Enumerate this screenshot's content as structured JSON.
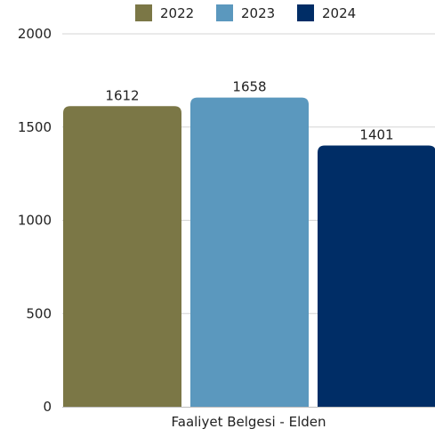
{
  "chart_data": {
    "type": "bar",
    "categories": [
      "Faaliyet Belgesi - Elden"
    ],
    "series": [
      {
        "name": "2022",
        "values": [
          1612
        ],
        "color": "#7b7746"
      },
      {
        "name": "2023",
        "values": [
          1658
        ],
        "color": "#5b98be"
      },
      {
        "name": "2024",
        "values": [
          1401
        ],
        "color": "#002d66"
      }
    ],
    "title": "",
    "xlabel": "",
    "ylabel": "",
    "ylim": [
      0,
      2000
    ],
    "yticks": [
      0,
      500,
      1000,
      1500,
      2000
    ],
    "grid": true,
    "legend_position": "top",
    "data_labels": true
  }
}
